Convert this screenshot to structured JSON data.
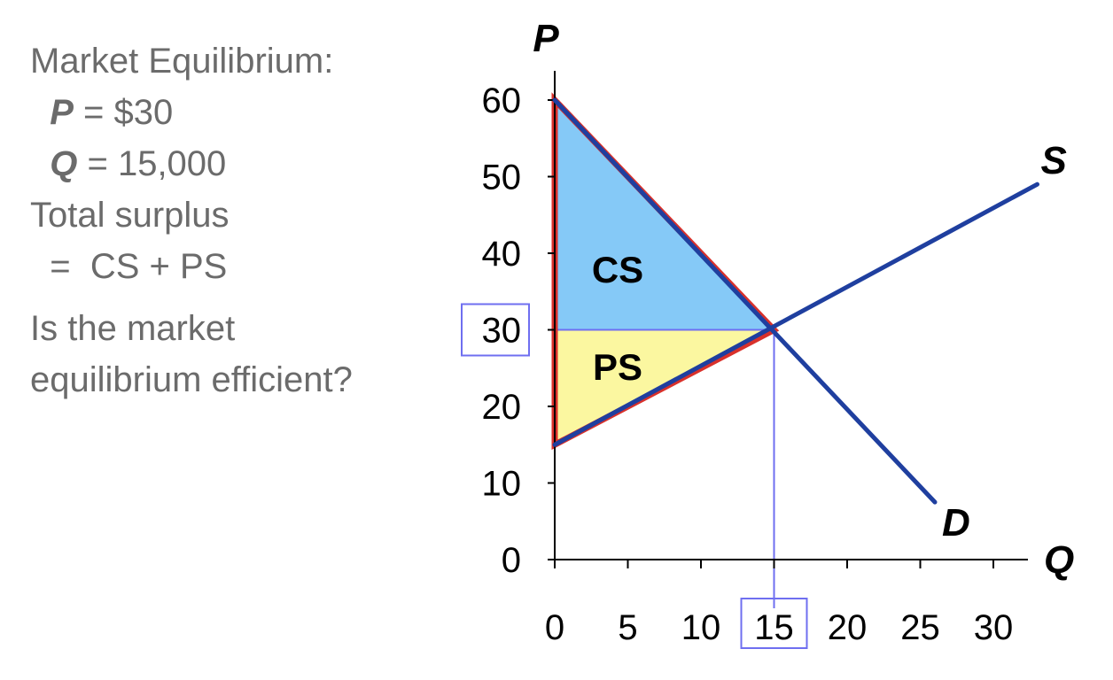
{
  "notes": {
    "heading": "Market Equilibrium:",
    "price_var": "P",
    "price_rest": " = $30",
    "qty_var": "Q",
    "qty_rest": " = 15,000",
    "surplus_line1": "Total surplus",
    "surplus_line2": "  =  CS + PS",
    "question_line1": "Is the market",
    "question_line2": "equilibrium efficient?"
  },
  "colors": {
    "curve": "#1f3f9f",
    "outline": "#d9312b",
    "cs_fill": "#85c9f7",
    "ps_fill": "#fbf7a0",
    "guide": "#6f6ff0",
    "axis": "#000000"
  },
  "chart_data": {
    "type": "line",
    "xlabel": "Q",
    "ylabel": "P",
    "xlim": [
      0,
      30
    ],
    "ylim": [
      0,
      60
    ],
    "x_ticks": [
      0,
      5,
      10,
      15,
      20,
      25,
      30
    ],
    "y_ticks": [
      0,
      10,
      20,
      30,
      40,
      50,
      60
    ],
    "series": [
      {
        "name": "D",
        "x": [
          0,
          26
        ],
        "y": [
          60,
          7.5
        ]
      },
      {
        "name": "S",
        "x": [
          15,
          33
        ],
        "y": [
          30,
          49
        ]
      }
    ],
    "supply_origin": [
      0,
      15
    ],
    "equilibrium": {
      "x": 15,
      "y": 30
    },
    "highlighted_ticks": {
      "x": 15,
      "y": 30
    },
    "regions": [
      {
        "name": "CS",
        "points": [
          [
            0,
            60
          ],
          [
            15,
            30
          ],
          [
            0,
            30
          ]
        ]
      },
      {
        "name": "PS",
        "points": [
          [
            0,
            30
          ],
          [
            15,
            30
          ],
          [
            0,
            15
          ]
        ]
      }
    ]
  }
}
